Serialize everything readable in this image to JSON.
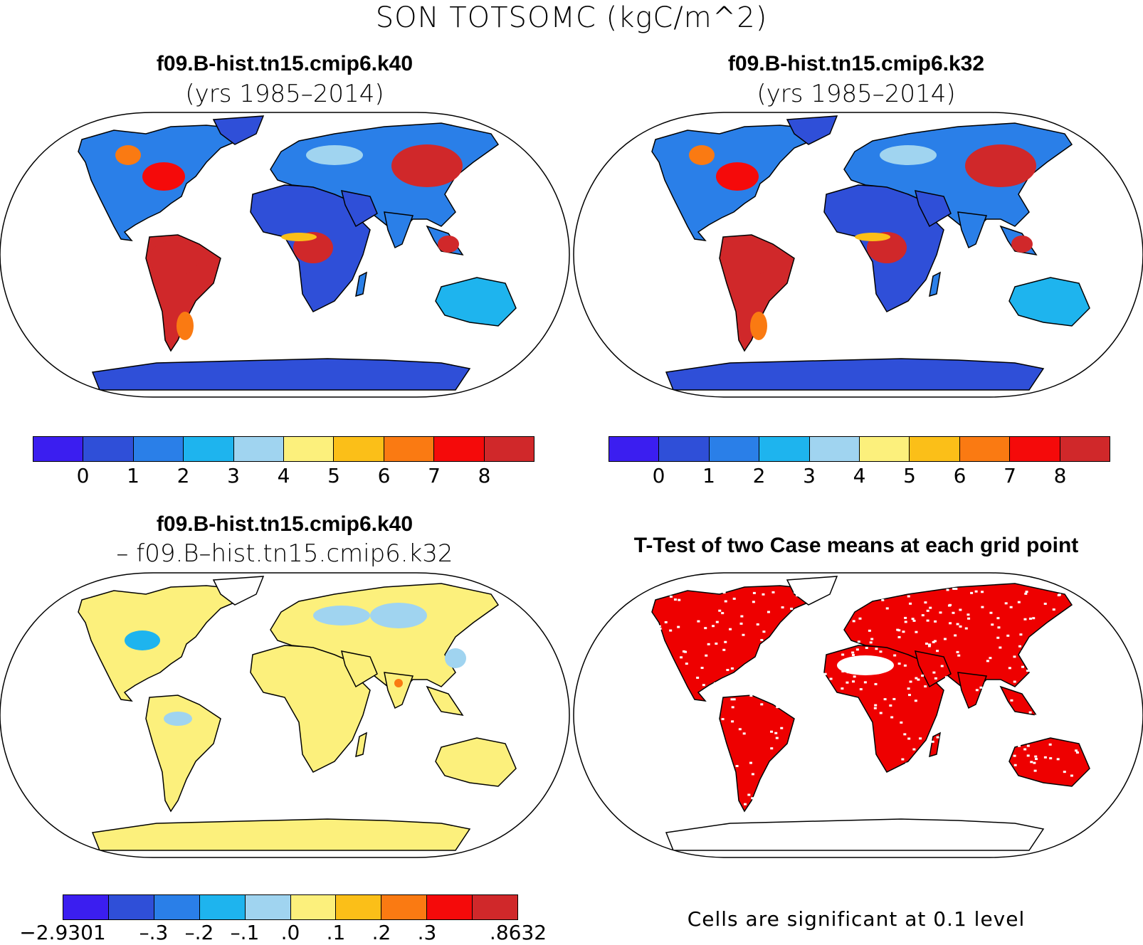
{
  "figure_title": "SON TOTSOMC (kgC/m^2)",
  "panels": {
    "top_left": {
      "title": "f09.B-hist.tn15.cmip6.k40",
      "subtitle": "(yrs 1985–2014)"
    },
    "top_right": {
      "title": "f09.B-hist.tn15.cmip6.k32",
      "subtitle": "(yrs 1985–2014)"
    },
    "bottom_left": {
      "title": "f09.B-hist.tn15.cmip6.k40",
      "subtitle": "– f09.B–hist.tn15.cmip6.k32"
    },
    "bottom_right": {
      "title": "T-Test of two Case means at each grid point",
      "note": "Cells are significant at 0.1 level"
    }
  },
  "colorbar_abs": {
    "colors": [
      "#3b1ef0",
      "#2f4fd8",
      "#2a7fe8",
      "#1eb4ee",
      "#a0d4f0",
      "#fcf07c",
      "#fbbf18",
      "#fa7a12",
      "#f50a0a",
      "#d0282a"
    ],
    "labels": [
      "0",
      "1",
      "2",
      "3",
      "4",
      "5",
      "6",
      "7",
      "8"
    ]
  },
  "colorbar_diff": {
    "colors": [
      "#3b1ef0",
      "#2f4fd8",
      "#2a7fe8",
      "#1eb4ee",
      "#a0d4f0",
      "#fcf07c",
      "#fbbf18",
      "#fa7a12",
      "#f50a0a",
      "#d0282a"
    ],
    "labels": [
      "−2.9301",
      "–.3",
      "–.2",
      "–.1",
      ".0",
      ".1",
      ".2",
      ".3",
      ".8632"
    ]
  },
  "ttest_color": "#ee0000"
}
